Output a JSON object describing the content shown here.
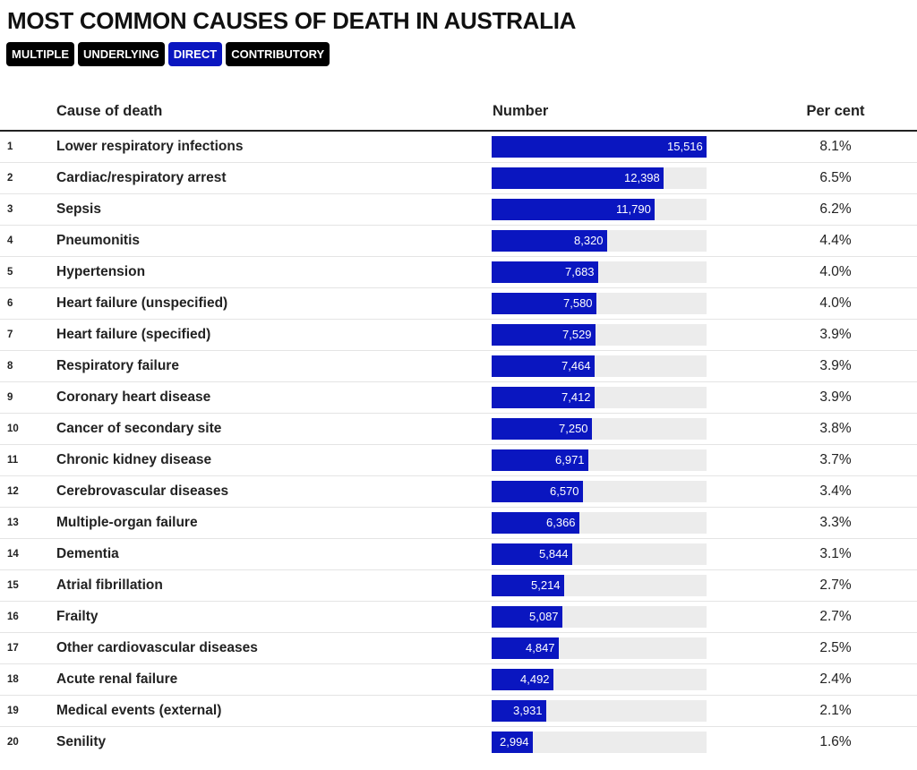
{
  "title": "MOST COMMON CAUSES OF DEATH IN AUSTRALIA",
  "filters": [
    {
      "label": "MULTIPLE",
      "active": false
    },
    {
      "label": "UNDERLYING",
      "active": false
    },
    {
      "label": "DIRECT",
      "active": true
    },
    {
      "label": "CONTRIBUTORY",
      "active": false
    }
  ],
  "headers": {
    "cause": "Cause of death",
    "number": "Number",
    "percent": "Per cent"
  },
  "colors": {
    "bar": "#0a16c0",
    "track": "#ececec",
    "active_filter": "#0a16c0",
    "filter": "#000000"
  },
  "chart_data": {
    "type": "bar",
    "orientation": "horizontal",
    "title": "MOST COMMON CAUSES OF DEATH IN AUSTRALIA",
    "xlim": [
      0,
      15516
    ],
    "rows": [
      {
        "rank": "1",
        "cause": "Lower respiratory infections",
        "value": 15516,
        "value_label": "15,516",
        "percent": "8.1%"
      },
      {
        "rank": "2",
        "cause": "Cardiac/respiratory arrest",
        "value": 12398,
        "value_label": "12,398",
        "percent": "6.5%"
      },
      {
        "rank": "3",
        "cause": "Sepsis",
        "value": 11790,
        "value_label": "11,790",
        "percent": "6.2%"
      },
      {
        "rank": "4",
        "cause": "Pneumonitis",
        "value": 8320,
        "value_label": "8,320",
        "percent": "4.4%"
      },
      {
        "rank": "5",
        "cause": "Hypertension",
        "value": 7683,
        "value_label": "7,683",
        "percent": "4.0%"
      },
      {
        "rank": "6",
        "cause": "Heart failure (unspecified)",
        "value": 7580,
        "value_label": "7,580",
        "percent": "4.0%"
      },
      {
        "rank": "7",
        "cause": "Heart failure (specified)",
        "value": 7529,
        "value_label": "7,529",
        "percent": "3.9%"
      },
      {
        "rank": "8",
        "cause": "Respiratory failure",
        "value": 7464,
        "value_label": "7,464",
        "percent": "3.9%"
      },
      {
        "rank": "9",
        "cause": "Coronary heart disease",
        "value": 7412,
        "value_label": "7,412",
        "percent": "3.9%"
      },
      {
        "rank": "10",
        "cause": "Cancer of secondary site",
        "value": 7250,
        "value_label": "7,250",
        "percent": "3.8%"
      },
      {
        "rank": "11",
        "cause": "Chronic kidney disease",
        "value": 6971,
        "value_label": "6,971",
        "percent": "3.7%"
      },
      {
        "rank": "12",
        "cause": "Cerebrovascular diseases",
        "value": 6570,
        "value_label": "6,570",
        "percent": "3.4%"
      },
      {
        "rank": "13",
        "cause": "Multiple-organ failure",
        "value": 6366,
        "value_label": "6,366",
        "percent": "3.3%"
      },
      {
        "rank": "14",
        "cause": "Dementia",
        "value": 5844,
        "value_label": "5,844",
        "percent": "3.1%"
      },
      {
        "rank": "15",
        "cause": "Atrial fibrillation",
        "value": 5214,
        "value_label": "5,214",
        "percent": "2.7%"
      },
      {
        "rank": "16",
        "cause": "Frailty",
        "value": 5087,
        "value_label": "5,087",
        "percent": "2.7%"
      },
      {
        "rank": "17",
        "cause": "Other cardiovascular diseases",
        "value": 4847,
        "value_label": "4,847",
        "percent": "2.5%"
      },
      {
        "rank": "18",
        "cause": "Acute renal failure",
        "value": 4492,
        "value_label": "4,492",
        "percent": "2.4%"
      },
      {
        "rank": "19",
        "cause": "Medical events (external)",
        "value": 3931,
        "value_label": "3,931",
        "percent": "2.1%"
      },
      {
        "rank": "20",
        "cause": "Senility",
        "value": 2994,
        "value_label": "2,994",
        "percent": "1.6%"
      }
    ]
  }
}
